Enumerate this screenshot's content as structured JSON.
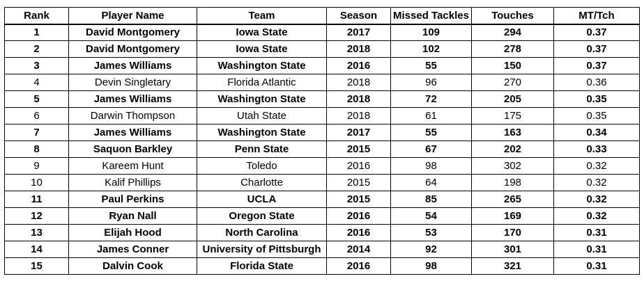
{
  "table": {
    "columns": [
      "Rank",
      "Player Name",
      "Team",
      "Season",
      "Missed Tackles",
      "Touches",
      "MT/Tch"
    ],
    "rows": [
      {
        "bold": true,
        "cells": [
          "1",
          "David Montgomery",
          "Iowa State",
          "2017",
          "109",
          "294",
          "0.37"
        ]
      },
      {
        "bold": true,
        "cells": [
          "2",
          "David Montgomery",
          "Iowa State",
          "2018",
          "102",
          "278",
          "0.37"
        ]
      },
      {
        "bold": true,
        "cells": [
          "3",
          "James Williams",
          "Washington State",
          "2016",
          "55",
          "150",
          "0.37"
        ]
      },
      {
        "bold": false,
        "cells": [
          "4",
          "Devin Singletary",
          "Florida Atlantic",
          "2018",
          "96",
          "270",
          "0.36"
        ]
      },
      {
        "bold": true,
        "cells": [
          "5",
          "James Williams",
          "Washington State",
          "2018",
          "72",
          "205",
          "0.35"
        ]
      },
      {
        "bold": false,
        "cells": [
          "6",
          "Darwin Thompson",
          "Utah State",
          "2018",
          "61",
          "175",
          "0.35"
        ]
      },
      {
        "bold": true,
        "cells": [
          "7",
          "James Williams",
          "Washington State",
          "2017",
          "55",
          "163",
          "0.34"
        ]
      },
      {
        "bold": true,
        "cells": [
          "8",
          "Saquon Barkley",
          "Penn State",
          "2015",
          "67",
          "202",
          "0.33"
        ]
      },
      {
        "bold": false,
        "cells": [
          "9",
          "Kareem Hunt",
          "Toledo",
          "2016",
          "98",
          "302",
          "0.32"
        ]
      },
      {
        "bold": false,
        "cells": [
          "10",
          "Kalif Phillips",
          "Charlotte",
          "2015",
          "64",
          "198",
          "0.32"
        ]
      },
      {
        "bold": true,
        "cells": [
          "11",
          "Paul Perkins",
          "UCLA",
          "2015",
          "85",
          "265",
          "0.32"
        ]
      },
      {
        "bold": true,
        "cells": [
          "12",
          "Ryan Nall",
          "Oregon State",
          "2016",
          "54",
          "169",
          "0.32"
        ]
      },
      {
        "bold": true,
        "cells": [
          "13",
          "Elijah Hood",
          "North Carolina",
          "2016",
          "53",
          "170",
          "0.31"
        ]
      },
      {
        "bold": true,
        "cells": [
          "14",
          "James Conner",
          "University of Pittsburgh",
          "2014",
          "92",
          "301",
          "0.31"
        ]
      },
      {
        "bold": true,
        "cells": [
          "15",
          "Dalvin Cook",
          "Florida State",
          "2016",
          "98",
          "321",
          "0.31"
        ]
      }
    ]
  }
}
